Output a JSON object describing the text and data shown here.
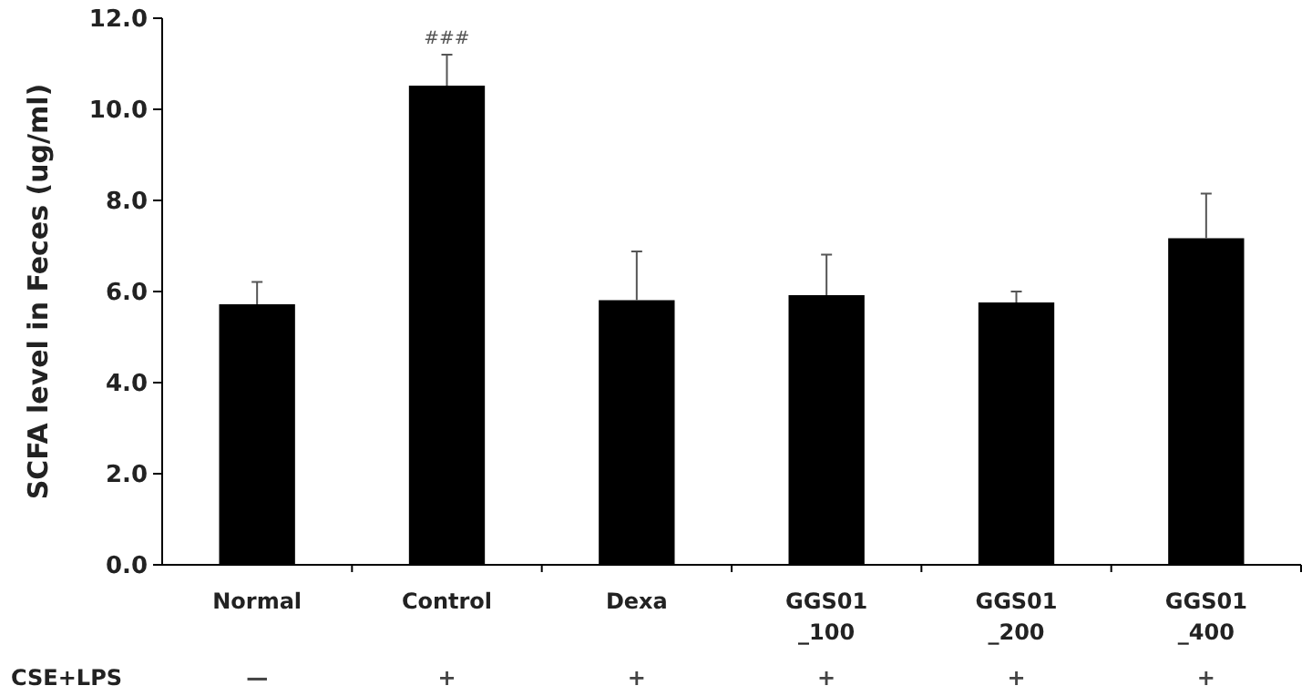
{
  "chart_data": {
    "type": "bar",
    "ylabel": "SCFA level in Feces (ug/ml)",
    "categories": [
      "Normal",
      "Control",
      "Dexa",
      "GGS01\n_100",
      "GGS01\n_200",
      "GGS01\n_400"
    ],
    "values": [
      5.72,
      10.52,
      5.81,
      5.92,
      5.76,
      7.17
    ],
    "errors": [
      0.49,
      0.68,
      1.07,
      0.89,
      0.24,
      0.98
    ],
    "value_labels": [
      null,
      "###",
      null,
      null,
      null,
      null
    ],
    "color": "#000000",
    "ylim": [
      0,
      12
    ],
    "yticks": [
      {
        "value": 0,
        "label": "0.0"
      },
      {
        "value": 2,
        "label": "2.0"
      },
      {
        "value": 4,
        "label": "4.0"
      },
      {
        "value": 6,
        "label": "6.0"
      },
      {
        "value": 8,
        "label": "8.0"
      },
      {
        "value": 10,
        "label": "10.0"
      },
      {
        "value": 12,
        "label": "12.0"
      }
    ],
    "grid": false,
    "annotations": [
      "CSE+LPS",
      "—",
      "+",
      "+",
      "+",
      "+",
      "+"
    ]
  }
}
